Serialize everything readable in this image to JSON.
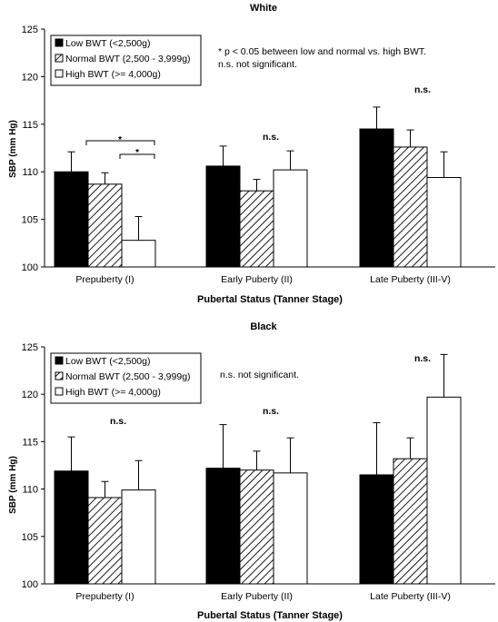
{
  "chart_data": [
    {
      "type": "bar",
      "title": "White",
      "xlabel": "Pubertal Status (Tanner Stage)",
      "ylabel": "SBP (mm Hg)",
      "ylim": [
        100,
        125
      ],
      "yticks": [
        100,
        105,
        110,
        115,
        120,
        125
      ],
      "grid": false,
      "legend_position": "top-left",
      "categories": [
        "Prepuberty (I)",
        "Early Puberty (II)",
        "Late Puberty (III-V)"
      ],
      "series": [
        {
          "name": "Low BWT (<2,500g)",
          "fill": "solid-black",
          "values": [
            110.0,
            110.6,
            114.5
          ],
          "err_upper": [
            112.1,
            112.7,
            116.8
          ]
        },
        {
          "name": "Normal BWT (2,500 - 3,999g)",
          "fill": "diagonal-hatch",
          "values": [
            108.7,
            108.0,
            112.6
          ],
          "err_upper": [
            109.9,
            109.2,
            114.4
          ]
        },
        {
          "name": "High BWT (>= 4,000g)",
          "fill": "white",
          "values": [
            102.8,
            110.2,
            109.4
          ],
          "err_upper": [
            105.3,
            112.2,
            112.1
          ]
        }
      ],
      "annotations": {
        "note_line1": "*  p < 0.05 between low and normal vs. high BWT.",
        "note_line2": "n.s. not significant.",
        "sig_marks": [
          "*",
          "*"
        ],
        "ns_labels": [
          "n.s.",
          "n.s."
        ]
      }
    },
    {
      "type": "bar",
      "title": "Black",
      "xlabel": "Pubertal Status (Tanner Stage)",
      "ylabel": "SBP (mm Hg)",
      "ylim": [
        100,
        125
      ],
      "yticks": [
        100,
        105,
        110,
        115,
        120,
        125
      ],
      "grid": false,
      "legend_position": "top-left",
      "categories": [
        "Prepuberty (I)",
        "Early Puberty (II)",
        "Late Puberty (III-V)"
      ],
      "series": [
        {
          "name": "Low BWT (<2,500g)",
          "fill": "solid-black",
          "values": [
            111.9,
            112.2,
            111.5
          ],
          "err_upper": [
            115.5,
            116.8,
            117.0
          ]
        },
        {
          "name": "Normal BWT (2,500 - 3,999g)",
          "fill": "diagonal-hatch",
          "values": [
            109.1,
            112.0,
            113.2
          ],
          "err_upper": [
            110.8,
            114.0,
            115.4
          ]
        },
        {
          "name": "High BWT (>= 4,000g)",
          "fill": "white",
          "values": [
            109.9,
            111.7,
            119.7
          ],
          "err_upper": [
            113.0,
            115.4,
            124.2
          ]
        }
      ],
      "annotations": {
        "note_line1": "n.s. not significant.",
        "ns_labels": [
          "n.s.",
          "n.s.",
          "n.s."
        ]
      }
    }
  ]
}
